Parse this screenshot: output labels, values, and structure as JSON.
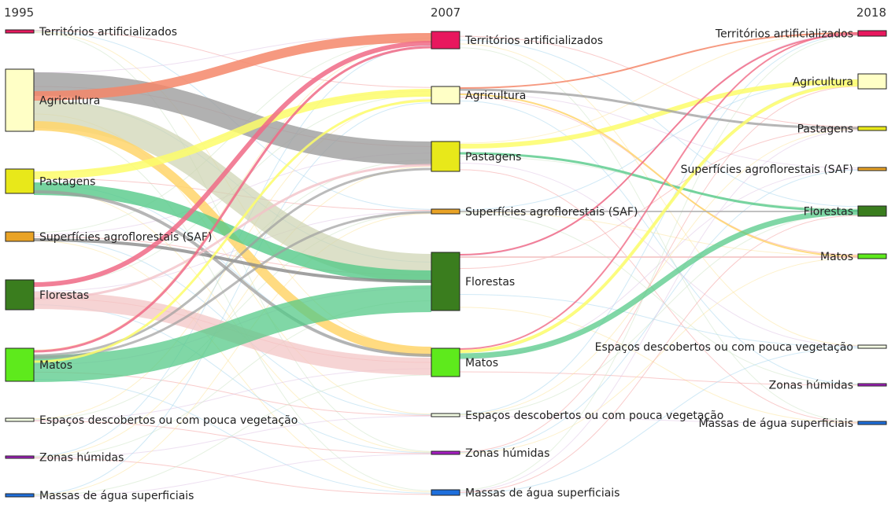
{
  "diagram": {
    "columns": [
      {
        "year": "1995"
      },
      {
        "year": "2007"
      },
      {
        "year": "2018"
      }
    ],
    "categories": [
      {
        "key": "terr",
        "label": "Territórios artificializados",
        "color": "#e8185e"
      },
      {
        "key": "agri",
        "label": "Agricultura",
        "color": "#ffffc6"
      },
      {
        "key": "past",
        "label": "Pastagens",
        "color": "#e8e81a"
      },
      {
        "key": "saf",
        "label": "Superfícies agroflorestais (SAF)",
        "color": "#e9a326"
      },
      {
        "key": "flor",
        "label": "Florestas",
        "color": "#3a7d1e"
      },
      {
        "key": "mato",
        "label": "Matos",
        "color": "#5eea1c"
      },
      {
        "key": "esp",
        "label": "Espaços descobertos ou com pouca vegetação",
        "color": "#f4fde4"
      },
      {
        "key": "zona",
        "label": "Zonas húmidas",
        "color": "#a61ec2"
      },
      {
        "key": "agua",
        "label": "Massas de água superficiais",
        "color": "#1e6fdc"
      }
    ],
    "link_colors": {
      "agri": "#9e9e9e",
      "past": "#fdfd6a",
      "flor": "#f3c6c6",
      "mato": "#55c988",
      "saf": "#8a8a8a"
    }
  }
}
